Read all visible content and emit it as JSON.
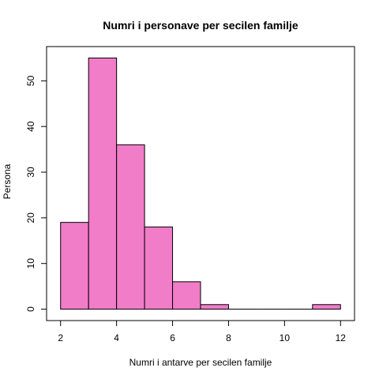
{
  "chart_data": {
    "type": "bar",
    "title": "Numri i personave per secilen familje",
    "xlabel": "Numri i antarve per secilen familje",
    "ylabel": "Persona",
    "bin_edges": [
      2,
      3,
      4,
      5,
      6,
      7,
      8,
      9,
      10,
      11,
      12
    ],
    "values": [
      19,
      55,
      36,
      18,
      6,
      1,
      0,
      0,
      0,
      1
    ],
    "xlim": [
      1.5,
      12.5
    ],
    "ylim": [
      -2.5,
      57.5
    ],
    "x_ticks": [
      2,
      4,
      6,
      8,
      10,
      12
    ],
    "y_ticks": [
      0,
      10,
      20,
      30,
      40,
      50
    ],
    "bar_color": "#F17CC8",
    "bar_edge_color": "#000000",
    "grid": false
  }
}
